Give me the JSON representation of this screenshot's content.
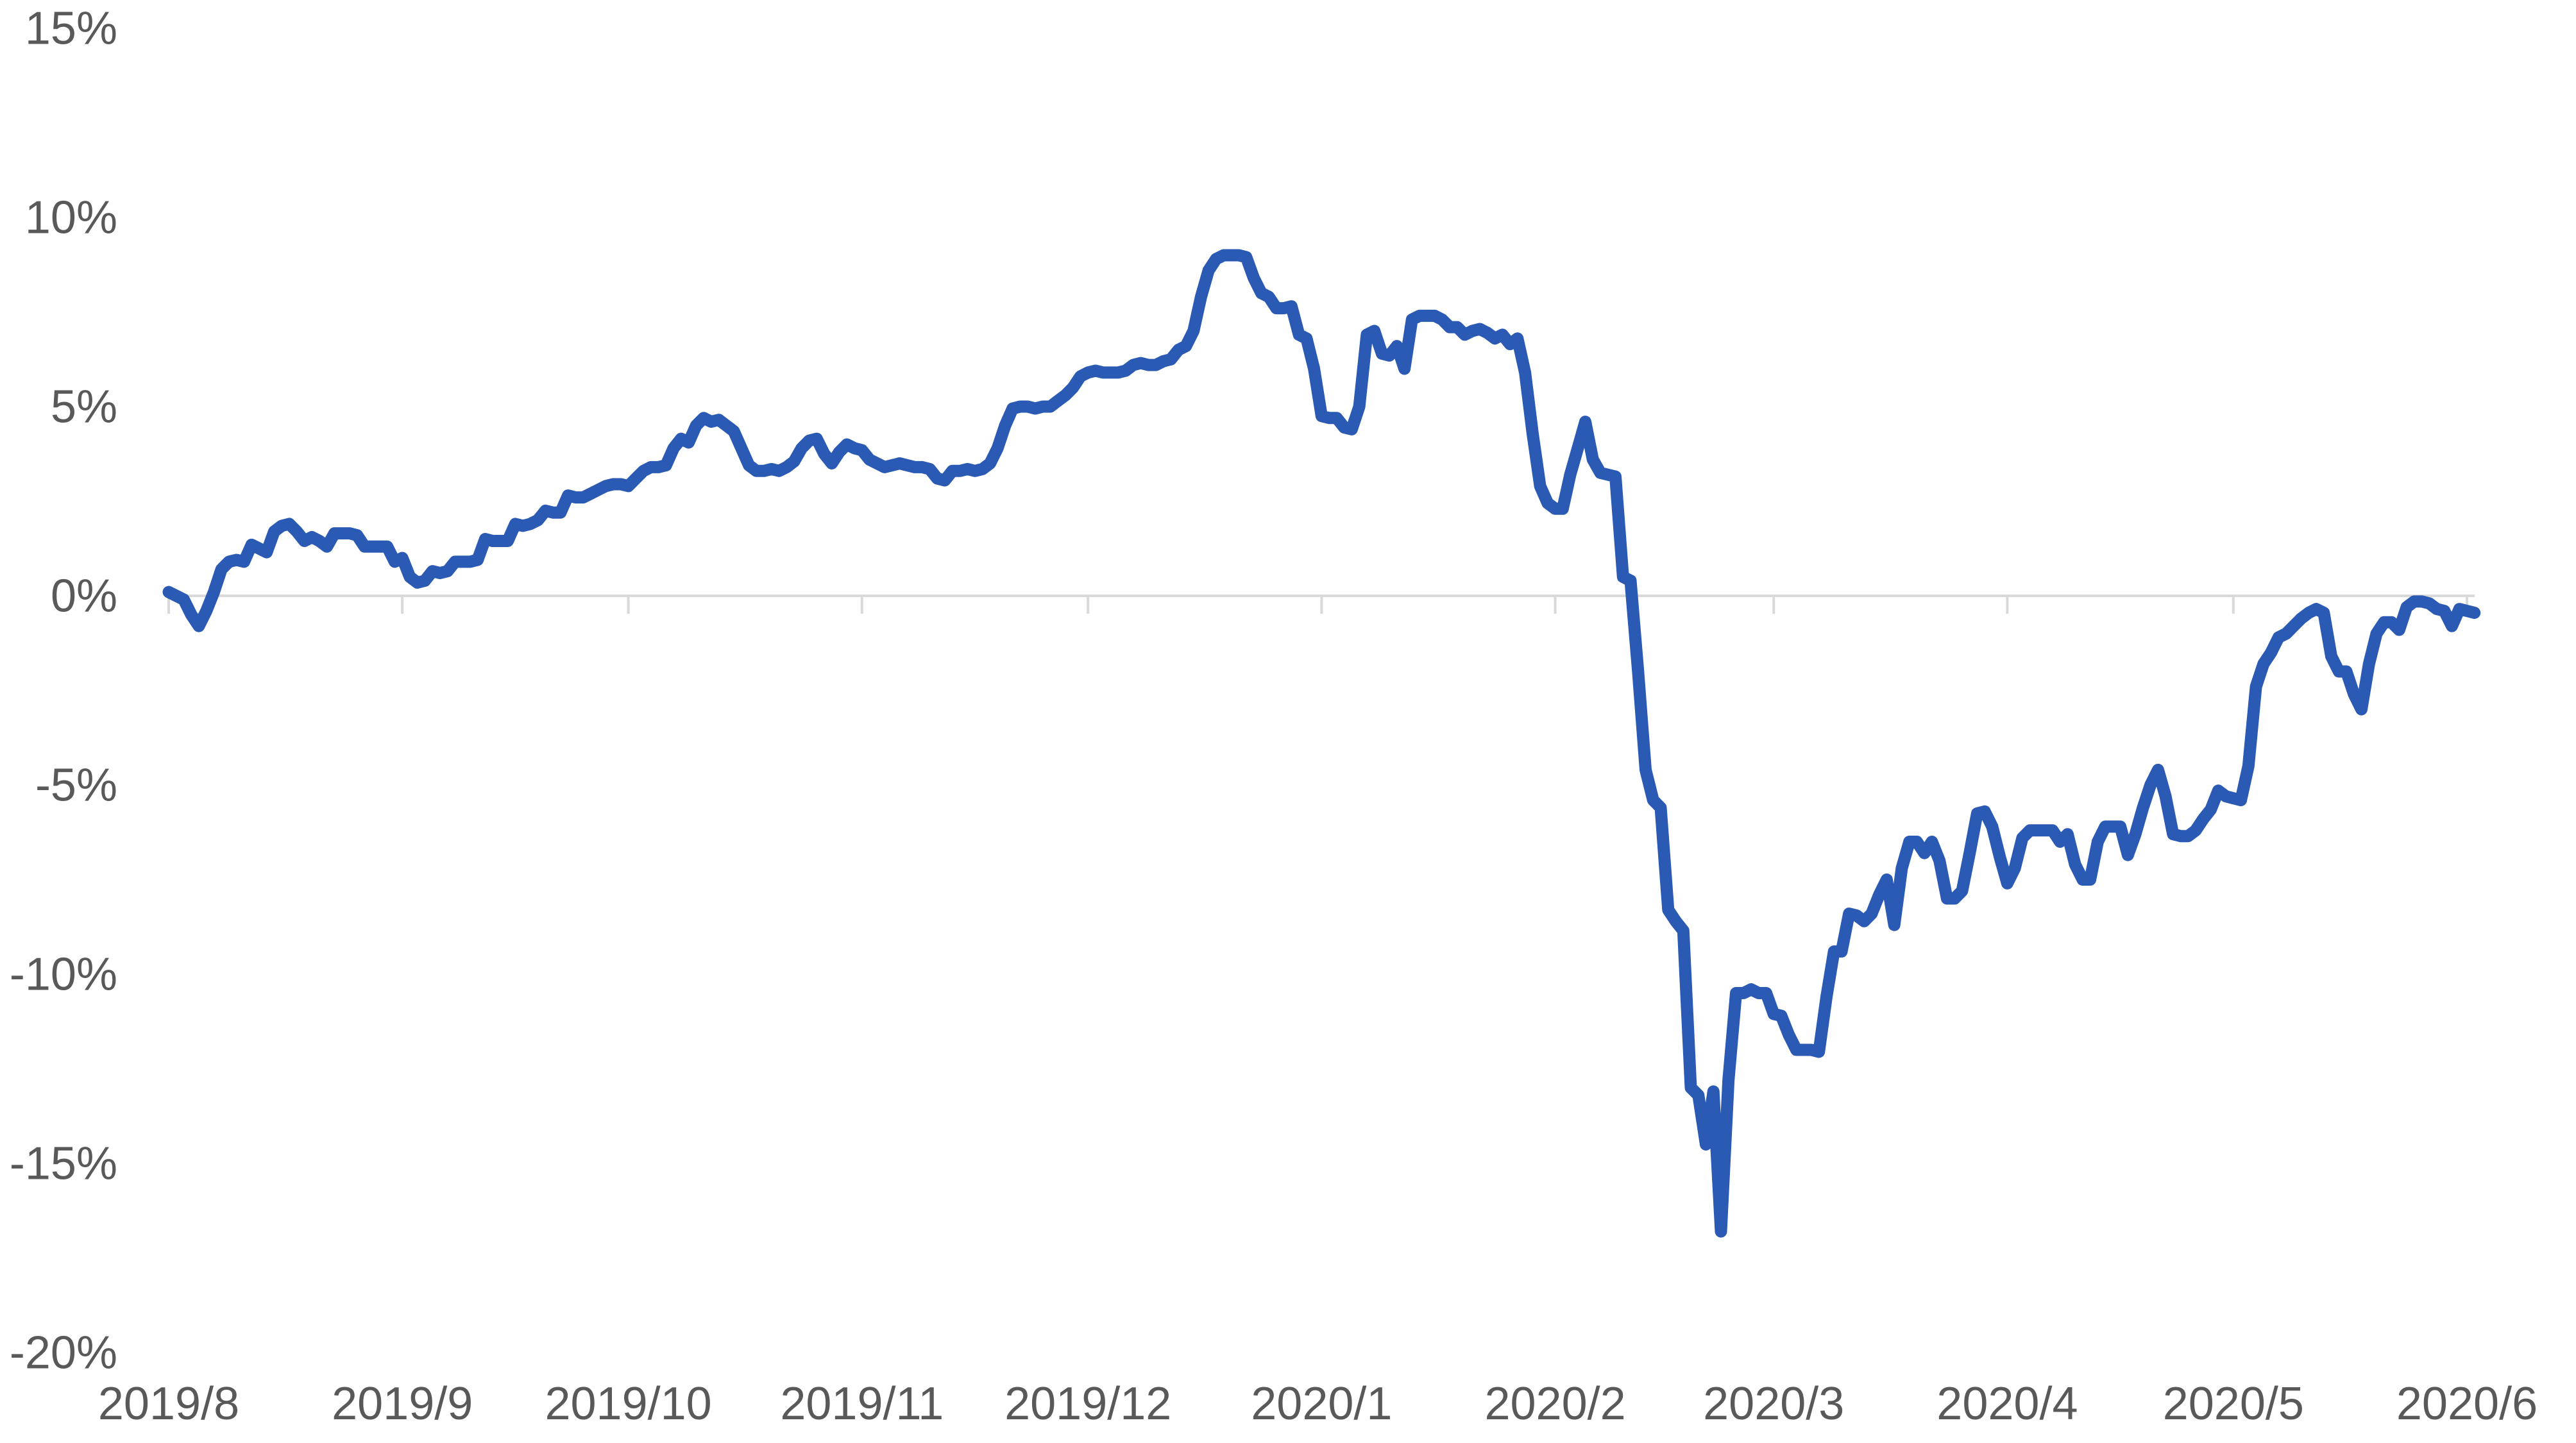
{
  "chart_data": {
    "type": "line",
    "title": "",
    "legend": "none",
    "grid": "horizontal gridline at 0% only (category axis line)",
    "background": "#FFFFFF",
    "x_axis": {
      "kind": "date",
      "total_days": 306,
      "tick_labels": [
        "2019/8",
        "2019/9",
        "2019/10",
        "2019/11",
        "2019/12",
        "2020/1",
        "2020/2",
        "2020/3",
        "2020/4",
        "2020/5",
        "2020/6"
      ],
      "tick_days": [
        0,
        31,
        61,
        92,
        122,
        153,
        184,
        213,
        244,
        274,
        305
      ],
      "label_position": "below axis, centered on month tick marks",
      "tick_mark_side": "below"
    },
    "y_axis": {
      "unit": "%",
      "min": -20,
      "max": 15,
      "tick_labels": [
        "15%",
        "10%",
        "5%",
        "0%",
        "-5%",
        "-10%",
        "-15%",
        "-20%"
      ],
      "tick_values": [
        15,
        10,
        5,
        0,
        -5,
        -10,
        -15,
        -20
      ],
      "label_position": "left, right-aligned, no axis line"
    },
    "series": {
      "color": "#2A5AB4",
      "stroke_width": 19,
      "points_format": "[day_offset_from_2019-08-01, cumulative_return_percent]",
      "points": [
        [
          0,
          0.1
        ],
        [
          1,
          0
        ],
        [
          2,
          -0.1
        ],
        [
          3,
          -0.5
        ],
        [
          4,
          -0.8
        ],
        [
          5,
          -0.4
        ],
        [
          6,
          0.1
        ],
        [
          7,
          0.7
        ],
        [
          8,
          0.9
        ],
        [
          9,
          0.95
        ],
        [
          10,
          0.9
        ],
        [
          11,
          1.35
        ],
        [
          12,
          1.25
        ],
        [
          13,
          1.15
        ],
        [
          14,
          1.7
        ],
        [
          15,
          1.85
        ],
        [
          16,
          1.9
        ],
        [
          17,
          1.7
        ],
        [
          18,
          1.45
        ],
        [
          19,
          1.55
        ],
        [
          20,
          1.45
        ],
        [
          21,
          1.3
        ],
        [
          22,
          1.65
        ],
        [
          23,
          1.65
        ],
        [
          24,
          1.65
        ],
        [
          25,
          1.6
        ],
        [
          26,
          1.3
        ],
        [
          27,
          1.3
        ],
        [
          28,
          1.3
        ],
        [
          29,
          1.3
        ],
        [
          30,
          0.9
        ],
        [
          31,
          1.0
        ],
        [
          32,
          0.5
        ],
        [
          33,
          0.35
        ],
        [
          34,
          0.4
        ],
        [
          35,
          0.65
        ],
        [
          36,
          0.6
        ],
        [
          37,
          0.65
        ],
        [
          38,
          0.9
        ],
        [
          39,
          0.9
        ],
        [
          40,
          0.9
        ],
        [
          41,
          0.95
        ],
        [
          42,
          1.5
        ],
        [
          43,
          1.45
        ],
        [
          44,
          1.45
        ],
        [
          45,
          1.45
        ],
        [
          46,
          1.9
        ],
        [
          47,
          1.85
        ],
        [
          48,
          1.9
        ],
        [
          49,
          2.0
        ],
        [
          50,
          2.25
        ],
        [
          51,
          2.2
        ],
        [
          52,
          2.2
        ],
        [
          53,
          2.65
        ],
        [
          54,
          2.6
        ],
        [
          55,
          2.6
        ],
        [
          56,
          2.7
        ],
        [
          57,
          2.8
        ],
        [
          58,
          2.9
        ],
        [
          59,
          2.95
        ],
        [
          60,
          2.95
        ],
        [
          61,
          2.9
        ],
        [
          62,
          3.1
        ],
        [
          63,
          3.3
        ],
        [
          64,
          3.4
        ],
        [
          65,
          3.4
        ],
        [
          66,
          3.45
        ],
        [
          67,
          3.9
        ],
        [
          68,
          4.15
        ],
        [
          69,
          4.05
        ],
        [
          70,
          4.5
        ],
        [
          71,
          4.7
        ],
        [
          72,
          4.6
        ],
        [
          73,
          4.65
        ],
        [
          74,
          4.5
        ],
        [
          75,
          4.35
        ],
        [
          76,
          3.9
        ],
        [
          77,
          3.45
        ],
        [
          78,
          3.3
        ],
        [
          79,
          3.3
        ],
        [
          80,
          3.35
        ],
        [
          81,
          3.3
        ],
        [
          82,
          3.4
        ],
        [
          83,
          3.55
        ],
        [
          84,
          3.9
        ],
        [
          85,
          4.1
        ],
        [
          86,
          4.15
        ],
        [
          87,
          3.75
        ],
        [
          88,
          3.5
        ],
        [
          89,
          3.8
        ],
        [
          90,
          4.0
        ],
        [
          91,
          3.9
        ],
        [
          92,
          3.85
        ],
        [
          93,
          3.6
        ],
        [
          94,
          3.5
        ],
        [
          95,
          3.4
        ],
        [
          96,
          3.45
        ],
        [
          97,
          3.5
        ],
        [
          98,
          3.45
        ],
        [
          99,
          3.4
        ],
        [
          100,
          3.4
        ],
        [
          101,
          3.35
        ],
        [
          102,
          3.1
        ],
        [
          103,
          3.05
        ],
        [
          104,
          3.3
        ],
        [
          105,
          3.3
        ],
        [
          106,
          3.35
        ],
        [
          107,
          3.3
        ],
        [
          108,
          3.35
        ],
        [
          109,
          3.5
        ],
        [
          110,
          3.9
        ],
        [
          111,
          4.5
        ],
        [
          112,
          4.95
        ],
        [
          113,
          5.0
        ],
        [
          114,
          5.0
        ],
        [
          115,
          4.95
        ],
        [
          116,
          5.0
        ],
        [
          117,
          5.0
        ],
        [
          118,
          5.15
        ],
        [
          119,
          5.3
        ],
        [
          120,
          5.5
        ],
        [
          121,
          5.8
        ],
        [
          122,
          5.9
        ],
        [
          123,
          5.95
        ],
        [
          124,
          5.9
        ],
        [
          125,
          5.9
        ],
        [
          126,
          5.9
        ],
        [
          127,
          5.95
        ],
        [
          128,
          6.1
        ],
        [
          129,
          6.15
        ],
        [
          130,
          6.1
        ],
        [
          131,
          6.1
        ],
        [
          132,
          6.2
        ],
        [
          133,
          6.25
        ],
        [
          134,
          6.5
        ],
        [
          135,
          6.6
        ],
        [
          136,
          7.0
        ],
        [
          137,
          7.9
        ],
        [
          138,
          8.6
        ],
        [
          139,
          8.9
        ],
        [
          140,
          9.0
        ],
        [
          141,
          9.0
        ],
        [
          142,
          9.0
        ],
        [
          143,
          8.95
        ],
        [
          144,
          8.4
        ],
        [
          145,
          8.0
        ],
        [
          146,
          7.9
        ],
        [
          147,
          7.6
        ],
        [
          148,
          7.6
        ],
        [
          149,
          7.65
        ],
        [
          150,
          6.9
        ],
        [
          151,
          6.8
        ],
        [
          152,
          6.0
        ],
        [
          153,
          4.75
        ],
        [
          154,
          4.7
        ],
        [
          155,
          4.7
        ],
        [
          156,
          4.45
        ],
        [
          157,
          4.4
        ],
        [
          158,
          5.0
        ],
        [
          159,
          6.9
        ],
        [
          160,
          7.0
        ],
        [
          161,
          6.4
        ],
        [
          162,
          6.35
        ],
        [
          163,
          6.6
        ],
        [
          164,
          6.0
        ],
        [
          165,
          7.3
        ],
        [
          166,
          7.4
        ],
        [
          167,
          7.4
        ],
        [
          168,
          7.4
        ],
        [
          169,
          7.3
        ],
        [
          170,
          7.1
        ],
        [
          171,
          7.1
        ],
        [
          172,
          6.9
        ],
        [
          173,
          7.0
        ],
        [
          174,
          7.05
        ],
        [
          175,
          6.95
        ],
        [
          176,
          6.8
        ],
        [
          177,
          6.9
        ],
        [
          178,
          6.65
        ],
        [
          179,
          6.8
        ],
        [
          180,
          5.9
        ],
        [
          181,
          4.3
        ],
        [
          182,
          2.9
        ],
        [
          183,
          2.45
        ],
        [
          184,
          2.3
        ],
        [
          185,
          2.3
        ],
        [
          186,
          3.2
        ],
        [
          187,
          3.9
        ],
        [
          188,
          4.6
        ],
        [
          189,
          3.6
        ],
        [
          190,
          3.25
        ],
        [
          191,
          3.2
        ],
        [
          192,
          3.15
        ],
        [
          193,
          0.5
        ],
        [
          194,
          0.4
        ],
        [
          195,
          -2.0
        ],
        [
          196,
          -4.6
        ],
        [
          197,
          -5.4
        ],
        [
          198,
          -5.6
        ],
        [
          199,
          -8.3
        ],
        [
          200,
          -8.6
        ],
        [
          201,
          -8.85
        ],
        [
          202,
          -13.0
        ],
        [
          203,
          -13.2
        ],
        [
          204,
          -14.5
        ],
        [
          205,
          -13.1
        ],
        [
          206,
          -16.8
        ],
        [
          207,
          -12.8
        ],
        [
          208,
          -10.5
        ],
        [
          209,
          -10.5
        ],
        [
          210,
          -10.4
        ],
        [
          211,
          -10.5
        ],
        [
          212,
          -10.5
        ],
        [
          213,
          -11.05
        ],
        [
          214,
          -11.1
        ],
        [
          215,
          -11.6
        ],
        [
          216,
          -12.0
        ],
        [
          217,
          -12.0
        ],
        [
          218,
          -12.0
        ],
        [
          219,
          -12.05
        ],
        [
          220,
          -10.6
        ],
        [
          221,
          -9.4
        ],
        [
          222,
          -9.4
        ],
        [
          223,
          -8.4
        ],
        [
          224,
          -8.45
        ],
        [
          225,
          -8.6
        ],
        [
          226,
          -8.4
        ],
        [
          227,
          -7.9
        ],
        [
          228,
          -7.5
        ],
        [
          229,
          -8.7
        ],
        [
          230,
          -7.2
        ],
        [
          231,
          -6.5
        ],
        [
          232,
          -6.5
        ],
        [
          233,
          -6.8
        ],
        [
          234,
          -6.5
        ],
        [
          235,
          -7.0
        ],
        [
          236,
          -8.0
        ],
        [
          237,
          -8.0
        ],
        [
          238,
          -7.8
        ],
        [
          239,
          -6.8
        ],
        [
          240,
          -5.75
        ],
        [
          241,
          -5.7
        ],
        [
          242,
          -6.1
        ],
        [
          243,
          -6.9
        ],
        [
          244,
          -7.6
        ],
        [
          245,
          -7.2
        ],
        [
          246,
          -6.4
        ],
        [
          247,
          -6.2
        ],
        [
          248,
          -6.2
        ],
        [
          249,
          -6.2
        ],
        [
          250,
          -6.2
        ],
        [
          251,
          -6.5
        ],
        [
          252,
          -6.3
        ],
        [
          253,
          -7.1
        ],
        [
          254,
          -7.5
        ],
        [
          255,
          -7.5
        ],
        [
          256,
          -6.5
        ],
        [
          257,
          -6.1
        ],
        [
          258,
          -6.1
        ],
        [
          259,
          -6.1
        ],
        [
          260,
          -6.85
        ],
        [
          261,
          -6.3
        ],
        [
          262,
          -5.6
        ],
        [
          263,
          -5.0
        ],
        [
          264,
          -4.6
        ],
        [
          265,
          -5.3
        ],
        [
          266,
          -6.3
        ],
        [
          267,
          -6.35
        ],
        [
          268,
          -6.35
        ],
        [
          269,
          -6.2
        ],
        [
          270,
          -5.9
        ],
        [
          271,
          -5.65
        ],
        [
          272,
          -5.15
        ],
        [
          273,
          -5.3
        ],
        [
          274,
          -5.35
        ],
        [
          275,
          -5.4
        ],
        [
          276,
          -4.5
        ],
        [
          277,
          -2.4
        ],
        [
          278,
          -1.8
        ],
        [
          279,
          -1.5
        ],
        [
          280,
          -1.1
        ],
        [
          281,
          -1.0
        ],
        [
          282,
          -0.8
        ],
        [
          283,
          -0.6
        ],
        [
          284,
          -0.45
        ],
        [
          285,
          -0.35
        ],
        [
          286,
          -0.45
        ],
        [
          287,
          -1.6
        ],
        [
          288,
          -2.0
        ],
        [
          289,
          -2.0
        ],
        [
          290,
          -2.6
        ],
        [
          291,
          -3.0
        ],
        [
          292,
          -1.8
        ],
        [
          293,
          -1.0
        ],
        [
          294,
          -0.7
        ],
        [
          295,
          -0.7
        ],
        [
          296,
          -0.9
        ],
        [
          297,
          -0.3
        ],
        [
          298,
          -0.15
        ],
        [
          299,
          -0.15
        ],
        [
          300,
          -0.2
        ],
        [
          301,
          -0.35
        ],
        [
          302,
          -0.4
        ],
        [
          303,
          -0.8
        ],
        [
          304,
          -0.35
        ],
        [
          305,
          -0.4
        ],
        [
          306,
          -0.45
        ]
      ]
    }
  },
  "style": {
    "axis_line_color": "#D9D9D9",
    "tick_mark_color": "#D9D9D9",
    "label_color": "#595959"
  }
}
